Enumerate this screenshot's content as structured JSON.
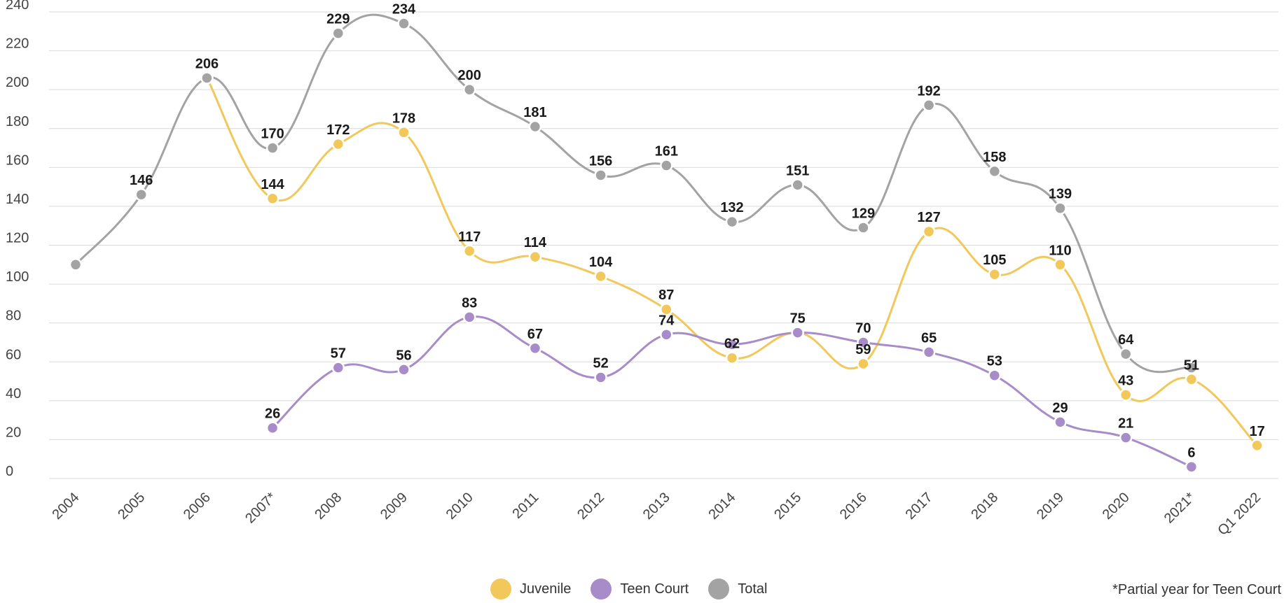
{
  "chart_data": {
    "type": "line",
    "categories": [
      "2004",
      "2005",
      "2006",
      "2007*",
      "2008",
      "2009",
      "2010",
      "2011",
      "2012",
      "2013",
      "2014",
      "2015",
      "2016",
      "2017",
      "2018",
      "2019",
      "2020",
      "2021*",
      "Q1 2022"
    ],
    "ylim": [
      0,
      240
    ],
    "yticks": [
      0,
      20,
      40,
      60,
      80,
      100,
      120,
      140,
      160,
      180,
      200,
      220,
      240
    ],
    "grid": true,
    "legend_position": "bottom",
    "series": [
      {
        "name": "Juvenile",
        "color": "#f2c85b",
        "values": [
          null,
          null,
          206,
          144,
          172,
          178,
          117,
          114,
          104,
          87,
          62,
          75,
          59,
          127,
          105,
          110,
          43,
          51,
          17
        ],
        "labels": [
          null,
          null,
          null,
          "144",
          "172",
          "178",
          "117",
          "114",
          "104",
          "87",
          "62",
          null,
          "59",
          "127",
          "105",
          "110",
          "43",
          "51",
          "17"
        ]
      },
      {
        "name": "Teen Court",
        "color": "#a78cc9",
        "values": [
          null,
          null,
          null,
          26,
          57,
          56,
          83,
          67,
          52,
          74,
          69,
          75,
          70,
          65,
          53,
          29,
          21,
          6,
          null
        ],
        "labels": [
          null,
          null,
          null,
          "26",
          "57",
          "56",
          "83",
          "67",
          "52",
          "74",
          null,
          "75",
          "70",
          "65",
          "53",
          "29",
          "21",
          "6",
          null
        ]
      },
      {
        "name": "Total",
        "color": "#a3a3a3",
        "values": [
          110,
          146,
          206,
          170,
          229,
          234,
          200,
          181,
          156,
          161,
          132,
          151,
          129,
          192,
          158,
          139,
          64,
          57,
          null
        ],
        "labels": [
          null,
          "146",
          "206",
          "170",
          "229",
          "234",
          "200",
          "181",
          "156",
          "161",
          "132",
          "151",
          "129",
          "192",
          "158",
          "139",
          "64",
          null,
          null
        ]
      }
    ],
    "footnote": "*Partial year for Teen Court"
  }
}
